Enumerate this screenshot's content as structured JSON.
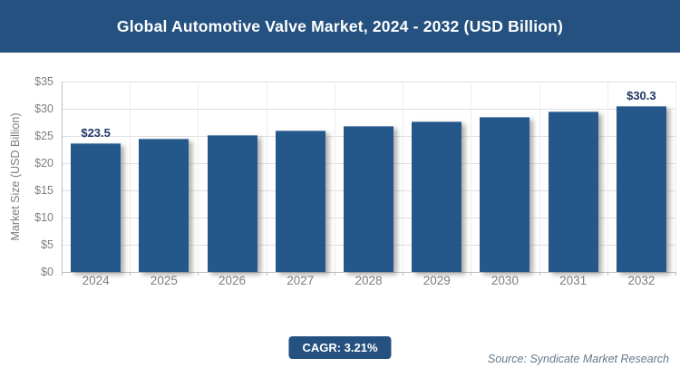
{
  "header": {
    "title": "Global Automotive Valve Market, 2024 - 2032 (USD Billion)",
    "bg_color": "#24517F",
    "text_color": "#ffffff"
  },
  "chart_data": {
    "type": "bar",
    "title": "Global Automotive Valve Market, 2024 - 2032 (USD Billion)",
    "categories": [
      "2024",
      "2025",
      "2026",
      "2027",
      "2028",
      "2029",
      "2030",
      "2031",
      "2032"
    ],
    "values": [
      23.5,
      24.3,
      25.0,
      25.8,
      26.6,
      27.5,
      28.4,
      29.3,
      30.3
    ],
    "value_labels": [
      {
        "index": 0,
        "text": "$23.5"
      },
      {
        "index": 8,
        "text": "$30.3"
      }
    ],
    "xlabel": "",
    "ylabel": "Market Size (USD Billion)",
    "ylim": [
      0,
      35
    ],
    "ytick_step": 5,
    "ytick_labels": [
      "$0",
      "$5",
      "$10",
      "$15",
      "$20",
      "$25",
      "$30",
      "$35"
    ],
    "grid": true,
    "legend": false,
    "bar_color": "#25588A",
    "value_label_color": "#1F3864",
    "tick_label_color": "#7f7f7f"
  },
  "footer": {
    "cagr_label": "CAGR: 3.21%",
    "cagr_bg_color": "#24517F",
    "source": "Source: Syndicate Market Research"
  }
}
